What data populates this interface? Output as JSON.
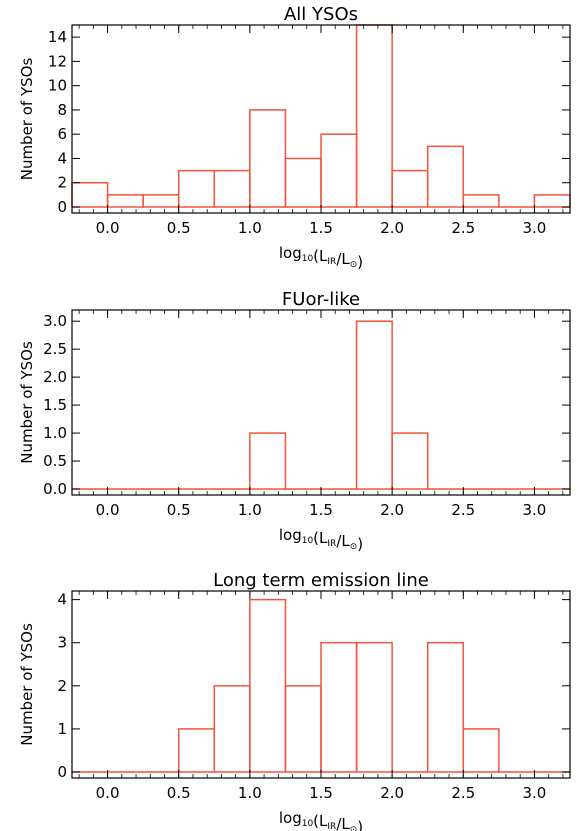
{
  "chart_data": [
    {
      "type": "bar",
      "title": "All YSOs",
      "xlabel": "log10(LIR/L⊙)",
      "ylabel": "Number of YSOs",
      "bin_edges": [
        -0.25,
        0.0,
        0.25,
        0.5,
        0.75,
        1.0,
        1.25,
        1.5,
        1.75,
        2.0,
        2.25,
        2.5,
        2.75,
        3.0,
        3.25
      ],
      "values": [
        2,
        1,
        1,
        3,
        3,
        8,
        4,
        6,
        15,
        3,
        5,
        1,
        0,
        1
      ],
      "xlim": [
        -0.25,
        3.25
      ],
      "ylim": [
        0,
        15
      ],
      "xticks": [
        "0.0",
        "0.5",
        "1.0",
        "1.5",
        "2.0",
        "2.5",
        "3.0"
      ],
      "yticks": [
        "0",
        "2",
        "4",
        "6",
        "8",
        "10",
        "12",
        "14"
      ],
      "color": "#f2553c"
    },
    {
      "type": "bar",
      "title": "FUor-like",
      "xlabel": "log10(LIR/L⊙)",
      "ylabel": "Number of YSOs",
      "bin_edges": [
        -0.25,
        0.0,
        0.25,
        0.5,
        0.75,
        1.0,
        1.25,
        1.5,
        1.75,
        2.0,
        2.25,
        2.5,
        2.75,
        3.0,
        3.25
      ],
      "values": [
        0,
        0,
        0,
        0,
        0,
        1,
        0,
        0,
        3,
        1,
        0,
        0,
        0,
        0
      ],
      "xlim": [
        -0.25,
        3.25
      ],
      "ylim": [
        0,
        3.2
      ],
      "xticks": [
        "0.0",
        "0.5",
        "1.0",
        "1.5",
        "2.0",
        "2.5",
        "3.0"
      ],
      "yticks": [
        "0.0",
        "0.5",
        "1.0",
        "1.5",
        "2.0",
        "2.5",
        "3.0"
      ],
      "color": "#f2553c"
    },
    {
      "type": "bar",
      "title": "Long term emission line",
      "xlabel": "log10(LIR/L⊙)",
      "ylabel": "Number of YSOs",
      "bin_edges": [
        -0.25,
        0.0,
        0.25,
        0.5,
        0.75,
        1.0,
        1.25,
        1.5,
        1.75,
        2.0,
        2.25,
        2.5,
        2.75,
        3.0,
        3.25
      ],
      "values": [
        0,
        0,
        0,
        1,
        2,
        4,
        2,
        3,
        3,
        0,
        3,
        1,
        0,
        0
      ],
      "xlim": [
        -0.25,
        3.25
      ],
      "ylim": [
        0,
        4.2
      ],
      "xticks": [
        "0.0",
        "0.5",
        "1.0",
        "1.5",
        "2.0",
        "2.5",
        "3.0"
      ],
      "yticks": [
        "0",
        "1",
        "2",
        "3",
        "4"
      ],
      "color": "#f2553c"
    }
  ],
  "label_parts": {
    "log": "log",
    "log_sub": "10",
    "open": "(L",
    "ir_sub": "IR",
    "slash": "/L",
    "sun_sub": "⊙",
    "close": ")"
  }
}
